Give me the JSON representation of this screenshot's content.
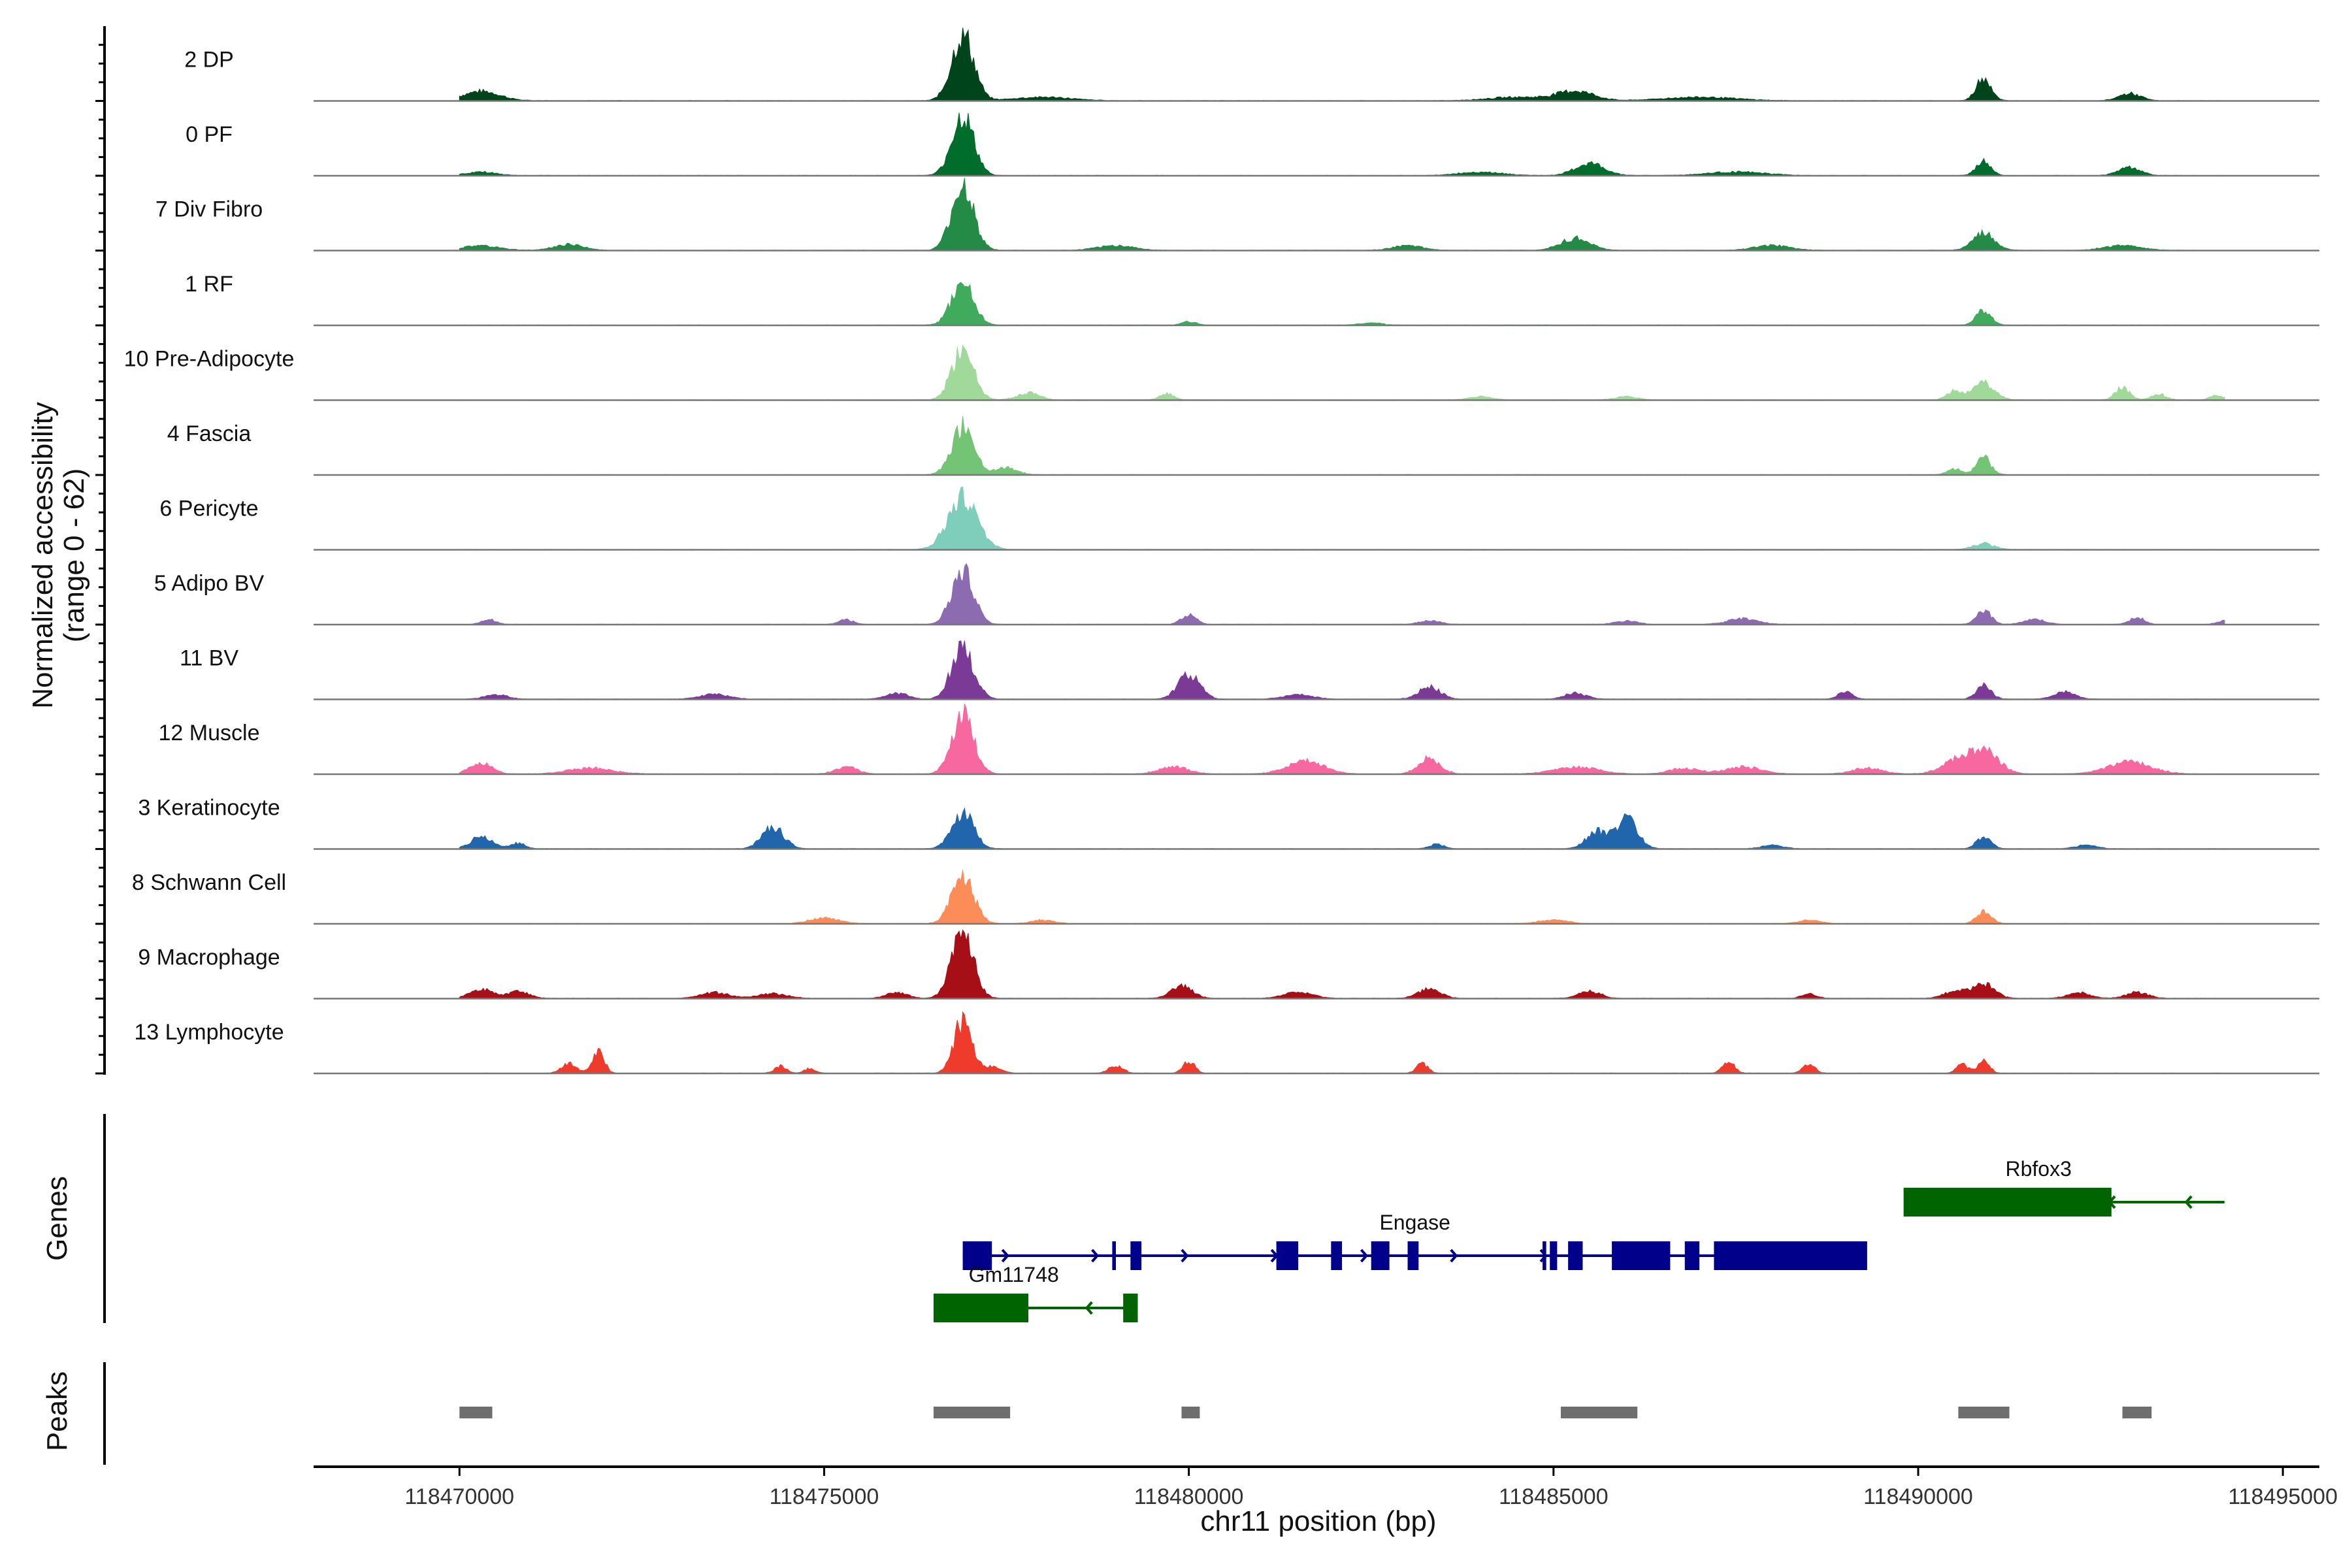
{
  "chart_data": {
    "type": "area",
    "title": "",
    "ylabel": [
      "Normalized accessibility",
      "(range 0 - 62)"
    ],
    "xlabel": "chr11 position (bp)",
    "xlim": [
      118468000,
      118495500
    ],
    "ylim": [
      0,
      62
    ],
    "x_ticks": [
      118470000,
      118475000,
      118480000,
      118485000,
      118490000,
      118495000
    ],
    "x_tick_labels": [
      "118470000",
      "118475000",
      "118480000",
      "118485000",
      "118490000",
      "118495000"
    ],
    "signal_range": [
      118470000,
      118494200
    ],
    "tracks": [
      {
        "name": "2 DP",
        "color": "#00441b",
        "peaks": [
          [
            118470300,
            8,
            250
          ],
          [
            118476900,
            56,
            150
          ],
          [
            118478000,
            3,
            400
          ],
          [
            118485300,
            8,
            250
          ],
          [
            118484500,
            3,
            400
          ],
          [
            118490900,
            20,
            100
          ],
          [
            118492900,
            6,
            150
          ],
          [
            118487000,
            3,
            500
          ]
        ]
      },
      {
        "name": "0 PF",
        "color": "#006d2c",
        "peaks": [
          [
            118470300,
            3,
            200
          ],
          [
            118476900,
            50,
            150
          ],
          [
            118485500,
            10,
            200
          ],
          [
            118484000,
            3,
            300
          ],
          [
            118490900,
            12,
            100
          ],
          [
            118492900,
            7,
            150
          ],
          [
            118487500,
            3,
            400
          ]
        ]
      },
      {
        "name": "7 Div Fibro",
        "color": "#238b45",
        "peaks": [
          [
            118470300,
            4,
            250
          ],
          [
            118471500,
            5,
            200
          ],
          [
            118476900,
            54,
            150
          ],
          [
            118479000,
            4,
            250
          ],
          [
            118483000,
            4,
            200
          ],
          [
            118485300,
            10,
            200
          ],
          [
            118488000,
            4,
            250
          ],
          [
            118490900,
            14,
            150
          ],
          [
            118492800,
            4,
            250
          ]
        ]
      },
      {
        "name": "1 RF",
        "color": "#41ab5d",
        "peaks": [
          [
            118476900,
            36,
            150
          ],
          [
            118480000,
            3,
            100
          ],
          [
            118482500,
            2,
            150
          ],
          [
            118490900,
            13,
            100
          ]
        ]
      },
      {
        "name": "10 Pre-Adipocyte",
        "color": "#a1d99b",
        "peaks": [
          [
            118476900,
            42,
            150
          ],
          [
            118477800,
            6,
            150
          ],
          [
            118479700,
            5,
            100
          ],
          [
            118484000,
            3,
            150
          ],
          [
            118486000,
            3,
            150
          ],
          [
            118490900,
            14,
            150
          ],
          [
            118490500,
            8,
            100
          ],
          [
            118492800,
            10,
            100
          ],
          [
            118493300,
            5,
            100
          ],
          [
            118494100,
            4,
            100
          ]
        ]
      },
      {
        "name": "4 Fascia",
        "color": "#74c476",
        "peaks": [
          [
            118476900,
            40,
            150
          ],
          [
            118477500,
            6,
            150
          ],
          [
            118490900,
            14,
            100
          ],
          [
            118490500,
            5,
            100
          ]
        ]
      },
      {
        "name": "6 Pericyte",
        "color": "#7fcdbb",
        "peaks": [
          [
            118476900,
            44,
            200
          ],
          [
            118490900,
            5,
            150
          ]
        ]
      },
      {
        "name": "5 Adipo BV",
        "color": "#8c6bb1",
        "peaks": [
          [
            118476900,
            44,
            150
          ],
          [
            118480000,
            8,
            100
          ],
          [
            118470400,
            4,
            100
          ],
          [
            118475300,
            4,
            100
          ],
          [
            118483300,
            3,
            150
          ],
          [
            118487600,
            5,
            200
          ],
          [
            118490900,
            12,
            100
          ],
          [
            118491600,
            4,
            150
          ],
          [
            118493000,
            6,
            100
          ],
          [
            118494200,
            3,
            100
          ],
          [
            118486000,
            3,
            150
          ]
        ]
      },
      {
        "name": "11 BV",
        "color": "#7a3a96",
        "peaks": [
          [
            118476900,
            44,
            150
          ],
          [
            118476000,
            5,
            150
          ],
          [
            118480000,
            20,
            150
          ],
          [
            118481500,
            4,
            200
          ],
          [
            118483300,
            10,
            150
          ],
          [
            118485300,
            5,
            150
          ],
          [
            118490900,
            12,
            100
          ],
          [
            118470500,
            4,
            150
          ],
          [
            118473500,
            4,
            200
          ],
          [
            118489000,
            6,
            100
          ],
          [
            118492000,
            6,
            150
          ]
        ]
      },
      {
        "name": "12 Muscle",
        "color": "#f768a1",
        "peaks": [
          [
            118476900,
            50,
            150
          ],
          [
            118470300,
            9,
            150
          ],
          [
            118471800,
            5,
            300
          ],
          [
            118475300,
            6,
            150
          ],
          [
            118479800,
            6,
            200
          ],
          [
            118481600,
            11,
            250
          ],
          [
            118483300,
            13,
            150
          ],
          [
            118485300,
            6,
            300
          ],
          [
            118487600,
            6,
            250
          ],
          [
            118490900,
            20,
            200
          ],
          [
            118490500,
            10,
            200
          ],
          [
            118492900,
            10,
            300
          ],
          [
            118489300,
            5,
            200
          ],
          [
            118486800,
            5,
            200
          ]
        ]
      },
      {
        "name": "3 Keratinocyte",
        "color": "#2166ac",
        "peaks": [
          [
            118476900,
            30,
            150
          ],
          [
            118474300,
            18,
            150
          ],
          [
            118470300,
            10,
            150
          ],
          [
            118470800,
            5,
            100
          ],
          [
            118486000,
            24,
            150
          ],
          [
            118485600,
            14,
            150
          ],
          [
            118490900,
            10,
            100
          ],
          [
            118483400,
            4,
            100
          ],
          [
            118488000,
            3,
            150
          ],
          [
            118492300,
            3,
            150
          ]
        ]
      },
      {
        "name": "8 Schwann Cell",
        "color": "#fc8d59",
        "peaks": [
          [
            118476900,
            40,
            150
          ],
          [
            118475000,
            5,
            200
          ],
          [
            118478000,
            3,
            150
          ],
          [
            118490900,
            10,
            100
          ],
          [
            118485000,
            3,
            200
          ],
          [
            118488500,
            3,
            150
          ]
        ]
      },
      {
        "name": "9 Macrophage",
        "color": "#a50f15",
        "peaks": [
          [
            118476900,
            54,
            150
          ],
          [
            118470300,
            8,
            150
          ],
          [
            118470800,
            6,
            150
          ],
          [
            118473500,
            5,
            200
          ],
          [
            118474300,
            4,
            200
          ],
          [
            118476000,
            5,
            150
          ],
          [
            118479900,
            10,
            150
          ],
          [
            118481500,
            5,
            200
          ],
          [
            118483300,
            8,
            150
          ],
          [
            118485500,
            6,
            150
          ],
          [
            118490900,
            12,
            150
          ],
          [
            118490500,
            6,
            150
          ],
          [
            118492200,
            5,
            150
          ],
          [
            118493000,
            5,
            150
          ],
          [
            118488500,
            4,
            100
          ]
        ]
      },
      {
        "name": "13 Lymphocyte",
        "color": "#ef3b2c",
        "peaks": [
          [
            118476900,
            44,
            120
          ],
          [
            118471900,
            20,
            80
          ],
          [
            118471500,
            8,
            100
          ],
          [
            118474400,
            6,
            80
          ],
          [
            118474800,
            4,
            80
          ],
          [
            118477300,
            6,
            120
          ],
          [
            118480000,
            10,
            80
          ],
          [
            118479000,
            6,
            100
          ],
          [
            118483200,
            8,
            80
          ],
          [
            118487400,
            10,
            80
          ],
          [
            118488500,
            8,
            80
          ],
          [
            118490900,
            10,
            80
          ],
          [
            118490600,
            8,
            80
          ]
        ]
      }
    ],
    "genes": [
      {
        "name": "Engase",
        "color": "#00008b",
        "start": 118476900,
        "end": 118489200,
        "row": 1,
        "strand": "+",
        "exons": [
          [
            118476900,
            118477300
          ],
          [
            118478950,
            118479000
          ],
          [
            118479200,
            118479350
          ],
          [
            118481200,
            118481500
          ],
          [
            118481950,
            118482100
          ],
          [
            118482500,
            118482750
          ],
          [
            118483000,
            118483150
          ],
          [
            118484850,
            118484900
          ],
          [
            118484950,
            118485050
          ],
          [
            118485200,
            118485400
          ],
          [
            118485800,
            118486600
          ],
          [
            118486800,
            118487000
          ],
          [
            118487200,
            118489300
          ]
        ]
      },
      {
        "name": "Gm11748",
        "color": "#006400",
        "start": 118476500,
        "end": 118479300,
        "row": 2,
        "strand": "-",
        "exons": [
          [
            118476500,
            118477800
          ],
          [
            118479100,
            118479300
          ]
        ]
      },
      {
        "name": "Rbfox3",
        "color": "#006400",
        "start": 118490000,
        "end": 118494200,
        "row": 0,
        "strand": "-",
        "exons": [
          [
            118489800,
            118492650
          ]
        ]
      }
    ],
    "peaks_track": [
      [
        118470000,
        118470450
      ],
      [
        118476500,
        118477550
      ],
      [
        118479900,
        118480150
      ],
      [
        118485100,
        118486150
      ],
      [
        118490550,
        118491250
      ],
      [
        118492800,
        118493200
      ]
    ],
    "panel_labels": {
      "genes": "Genes",
      "peaks": "Peaks"
    }
  }
}
